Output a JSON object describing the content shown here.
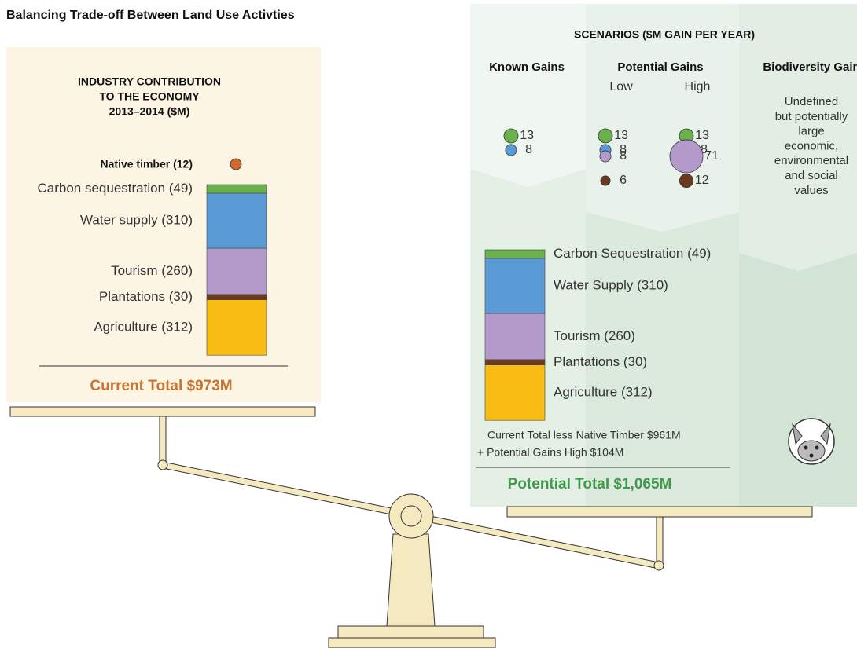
{
  "title": "Balancing Trade-off Between Land Use Activties",
  "current": {
    "heading": [
      "INDUSTRY CONTRIBUTION",
      "TO THE ECONOMY",
      "2013–2014 ($M)"
    ],
    "native_timber": {
      "label": "Native timber (12)",
      "value": 12,
      "color": "#d2692a"
    },
    "segments": [
      {
        "label": "Carbon sequestration (49)",
        "value": 49,
        "color": "#6ab04c"
      },
      {
        "label": "Water supply (310)",
        "value": 310,
        "color": "#5b9bd5"
      },
      {
        "label": "Tourism (260)",
        "value": 260,
        "color": "#b49acb"
      },
      {
        "label": "Plantations (30)",
        "value": 30,
        "color": "#6b3a1e"
      },
      {
        "label": "Agriculture (312)",
        "value": 312,
        "color": "#f9bc15"
      }
    ],
    "total": "Current Total $973M"
  },
  "scenarios": {
    "heading": "SCENARIOS  ($M GAIN PER YEAR)",
    "known": {
      "title": "Known Gains",
      "bubbles": [
        {
          "value": 13,
          "color": "#6ab04c"
        },
        {
          "value": 8,
          "color": "#5b9bd5"
        }
      ]
    },
    "potential": {
      "title": "Potential Gains",
      "low": {
        "label": "Low",
        "bubbles": [
          {
            "value": 13,
            "color": "#6ab04c"
          },
          {
            "value": 8,
            "color": "#5b9bd5"
          },
          {
            "value": 8,
            "color": "#b49acb"
          },
          {
            "value": 6,
            "color": "#6b3a1e"
          }
        ]
      },
      "high": {
        "label": "High",
        "bubbles": [
          {
            "value": 13,
            "color": "#6ab04c"
          },
          {
            "value": 8,
            "color": "#5b9bd5"
          },
          {
            "value": 71,
            "color": "#b49acb"
          },
          {
            "value": 12,
            "color": "#6b3a1e"
          }
        ]
      }
    },
    "biodiversity": {
      "title": "Biodiversity Gain",
      "text": [
        "Undefined",
        "but potentially",
        "large",
        "economic,",
        "environmental",
        "and social",
        "values"
      ]
    }
  },
  "potential_total": {
    "segments": [
      {
        "label": "Carbon Sequestration (49)",
        "value": 49,
        "color": "#6ab04c"
      },
      {
        "label": "Water Supply (310)",
        "value": 310,
        "color": "#5b9bd5"
      },
      {
        "label": "Tourism (260)",
        "value": 260,
        "color": "#b49acb"
      },
      {
        "label": "Plantations (30)",
        "value": 30,
        "color": "#6b3a1e"
      },
      {
        "label": "Agriculture (312)",
        "value": 312,
        "color": "#f9bc15"
      }
    ],
    "notes": [
      "Current Total less Native Timber $961M",
      "+ Potential Gains High $104M"
    ],
    "total": "Potential Total $1,065M"
  }
}
